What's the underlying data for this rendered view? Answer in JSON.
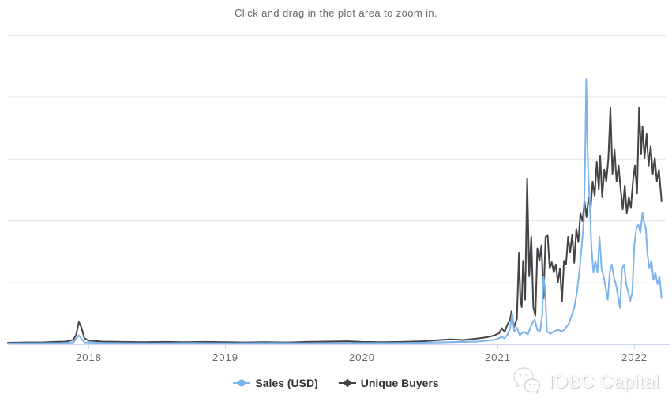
{
  "background_color": "#ffffff",
  "watermark": {
    "text": "IOBC Capital"
  },
  "chart_data": {
    "type": "line",
    "title": "Click and drag in the plot area to zoom in.",
    "xlabel": "",
    "ylabel": "",
    "legend_position": "bottom-center",
    "grid": "horizontal",
    "colors": {
      "grid": "#e6e6e6",
      "axis": "#ccd6eb",
      "tick": "#ccd6eb",
      "text": "#666666",
      "legend_text": "#333333",
      "sales": "#7cb5ec",
      "unique_buyers": "#434348"
    },
    "x_axis": {
      "ticks": [
        2018,
        2019,
        2020,
        2021,
        2022
      ],
      "range": [
        2017.41,
        2022.23
      ]
    },
    "y_axis": {
      "range": [
        0,
        100
      ],
      "unit": "relative (no y-axis labels visible in image)",
      "gridline_count": 5
    },
    "series": [
      {
        "name": "Sales (USD)",
        "color": "#7cb5ec",
        "marker": "circle",
        "points": [
          [
            2017.41,
            0.3
          ],
          [
            2017.6,
            0.3
          ],
          [
            2017.8,
            0.4
          ],
          [
            2017.89,
            0.6
          ],
          [
            2017.93,
            2.9
          ],
          [
            2017.97,
            0.6
          ],
          [
            2018.15,
            0.4
          ],
          [
            2018.45,
            0.3
          ],
          [
            2018.75,
            0.4
          ],
          [
            2019.05,
            0.3
          ],
          [
            2019.35,
            0.4
          ],
          [
            2019.65,
            0.3
          ],
          [
            2019.95,
            0.4
          ],
          [
            2020.2,
            0.4
          ],
          [
            2020.45,
            0.5
          ],
          [
            2020.65,
            0.7
          ],
          [
            2020.85,
            0.9
          ],
          [
            2020.97,
            1.4
          ],
          [
            2021.0,
            1.8
          ],
          [
            2021.03,
            2.4
          ],
          [
            2021.05,
            1.9
          ],
          [
            2021.07,
            3.1
          ],
          [
            2021.09,
            5.1
          ],
          [
            2021.105,
            10.0
          ],
          [
            2021.12,
            4.1
          ],
          [
            2021.14,
            5.4
          ],
          [
            2021.16,
            2.9
          ],
          [
            2021.19,
            4.1
          ],
          [
            2021.22,
            3.2
          ],
          [
            2021.25,
            6.6
          ],
          [
            2021.27,
            8.0
          ],
          [
            2021.29,
            4.6
          ],
          [
            2021.31,
            4.3
          ],
          [
            2021.325,
            9.2
          ],
          [
            2021.335,
            21.9
          ],
          [
            2021.345,
            18.2
          ],
          [
            2021.36,
            4.1
          ],
          [
            2021.385,
            3.4
          ],
          [
            2021.41,
            4.1
          ],
          [
            2021.44,
            4.7
          ],
          [
            2021.47,
            4.1
          ],
          [
            2021.5,
            5.4
          ],
          [
            2021.52,
            6.7
          ],
          [
            2021.54,
            9.2
          ],
          [
            2021.56,
            11.8
          ],
          [
            2021.58,
            16.9
          ],
          [
            2021.6,
            24.5
          ],
          [
            2021.615,
            32.0
          ],
          [
            2021.63,
            39.8
          ],
          [
            2021.64,
            60.2
          ],
          [
            2021.648,
            85.7
          ],
          [
            2021.656,
            65.3
          ],
          [
            2021.664,
            53.0
          ],
          [
            2021.672,
            47.5
          ],
          [
            2021.685,
            32.2
          ],
          [
            2021.7,
            23.2
          ],
          [
            2021.715,
            27.0
          ],
          [
            2021.73,
            23.2
          ],
          [
            2021.745,
            34.7
          ],
          [
            2021.76,
            24.5
          ],
          [
            2021.775,
            21.9
          ],
          [
            2021.79,
            18.2
          ],
          [
            2021.805,
            14.4
          ],
          [
            2021.82,
            23.2
          ],
          [
            2021.835,
            25.8
          ],
          [
            2021.85,
            21.9
          ],
          [
            2021.865,
            19.4
          ],
          [
            2021.88,
            15.7
          ],
          [
            2021.895,
            11.8
          ],
          [
            2021.91,
            24.5
          ],
          [
            2021.925,
            25.8
          ],
          [
            2021.94,
            19.4
          ],
          [
            2021.955,
            16.9
          ],
          [
            2021.97,
            14.0
          ],
          [
            2021.985,
            16.9
          ],
          [
            2022.0,
            32.2
          ],
          [
            2022.015,
            37.3
          ],
          [
            2022.03,
            38.6
          ],
          [
            2022.045,
            36.1
          ],
          [
            2022.06,
            42.4
          ],
          [
            2022.07,
            39.8
          ],
          [
            2022.085,
            37.3
          ],
          [
            2022.095,
            29.7
          ],
          [
            2022.11,
            24.5
          ],
          [
            2022.125,
            27.0
          ],
          [
            2022.14,
            20.8
          ],
          [
            2022.155,
            23.2
          ],
          [
            2022.17,
            19.4
          ],
          [
            2022.185,
            21.9
          ],
          [
            2022.2,
            14.9
          ]
        ]
      },
      {
        "name": "Unique Buyers",
        "color": "#434348",
        "marker": "diamond",
        "points": [
          [
            2017.41,
            0.5
          ],
          [
            2017.55,
            0.6
          ],
          [
            2017.66,
            0.6
          ],
          [
            2017.75,
            0.8
          ],
          [
            2017.84,
            0.9
          ],
          [
            2017.89,
            1.5
          ],
          [
            2017.91,
            3.0
          ],
          [
            2017.93,
            7.2
          ],
          [
            2017.95,
            5.3
          ],
          [
            2017.97,
            2.0
          ],
          [
            2018.0,
            1.2
          ],
          [
            2018.1,
            0.9
          ],
          [
            2018.25,
            0.8
          ],
          [
            2018.4,
            0.7
          ],
          [
            2018.55,
            0.8
          ],
          [
            2018.7,
            0.7
          ],
          [
            2018.85,
            0.8
          ],
          [
            2019.0,
            0.7
          ],
          [
            2019.15,
            0.6
          ],
          [
            2019.3,
            0.7
          ],
          [
            2019.45,
            0.6
          ],
          [
            2019.6,
            0.8
          ],
          [
            2019.75,
            0.9
          ],
          [
            2019.9,
            1.0
          ],
          [
            2020.0,
            0.8
          ],
          [
            2020.15,
            0.7
          ],
          [
            2020.3,
            0.8
          ],
          [
            2020.45,
            1.0
          ],
          [
            2020.55,
            1.3
          ],
          [
            2020.65,
            1.6
          ],
          [
            2020.75,
            1.4
          ],
          [
            2020.85,
            1.9
          ],
          [
            2020.92,
            2.3
          ],
          [
            2020.97,
            2.8
          ],
          [
            2021.01,
            3.6
          ],
          [
            2021.03,
            5.2
          ],
          [
            2021.05,
            4.0
          ],
          [
            2021.07,
            6.3
          ],
          [
            2021.09,
            8.0
          ],
          [
            2021.1,
            10.6
          ],
          [
            2021.12,
            5.6
          ],
          [
            2021.14,
            8.2
          ],
          [
            2021.155,
            29.6
          ],
          [
            2021.165,
            15.0
          ],
          [
            2021.175,
            12.0
          ],
          [
            2021.185,
            27.0
          ],
          [
            2021.2,
            14.4
          ],
          [
            2021.215,
            53.6
          ],
          [
            2021.23,
            22.0
          ],
          [
            2021.245,
            34.7
          ],
          [
            2021.26,
            12.0
          ],
          [
            2021.275,
            9.3
          ],
          [
            2021.29,
            31.0
          ],
          [
            2021.305,
            27.0
          ],
          [
            2021.32,
            32.0
          ],
          [
            2021.335,
            14.8
          ],
          [
            2021.35,
            34.7
          ],
          [
            2021.365,
            35.3
          ],
          [
            2021.38,
            24.5
          ],
          [
            2021.395,
            26.5
          ],
          [
            2021.41,
            23.2
          ],
          [
            2021.425,
            25.8
          ],
          [
            2021.44,
            20.0
          ],
          [
            2021.455,
            24.5
          ],
          [
            2021.47,
            13.8
          ],
          [
            2021.485,
            27.0
          ],
          [
            2021.5,
            25.8
          ],
          [
            2021.515,
            34.7
          ],
          [
            2021.53,
            29.6
          ],
          [
            2021.545,
            35.5
          ],
          [
            2021.56,
            26.3
          ],
          [
            2021.575,
            37.2
          ],
          [
            2021.59,
            33.0
          ],
          [
            2021.605,
            42.3
          ],
          [
            2021.62,
            39.8
          ],
          [
            2021.635,
            46.2
          ],
          [
            2021.65,
            41.1
          ],
          [
            2021.665,
            47.5
          ],
          [
            2021.68,
            43.6
          ],
          [
            2021.695,
            52.6
          ],
          [
            2021.71,
            48.0
          ],
          [
            2021.725,
            59.0
          ],
          [
            2021.74,
            50.0
          ],
          [
            2021.75,
            61.0
          ],
          [
            2021.765,
            47.5
          ],
          [
            2021.78,
            56.4
          ],
          [
            2021.795,
            52.6
          ],
          [
            2021.81,
            60.0
          ],
          [
            2021.825,
            76.3
          ],
          [
            2021.84,
            55.1
          ],
          [
            2021.855,
            62.8
          ],
          [
            2021.87,
            52.6
          ],
          [
            2021.885,
            57.7
          ],
          [
            2021.9,
            50.0
          ],
          [
            2021.915,
            43.6
          ],
          [
            2021.93,
            51.3
          ],
          [
            2021.945,
            42.3
          ],
          [
            2021.96,
            47.5
          ],
          [
            2021.975,
            44.0
          ],
          [
            2021.99,
            52.6
          ],
          [
            2022.005,
            57.7
          ],
          [
            2022.02,
            48.7
          ],
          [
            2022.035,
            76.3
          ],
          [
            2022.05,
            61.5
          ],
          [
            2022.06,
            70.4
          ],
          [
            2022.075,
            60.2
          ],
          [
            2022.09,
            67.9
          ],
          [
            2022.105,
            57.7
          ],
          [
            2022.12,
            64.0
          ],
          [
            2022.135,
            55.1
          ],
          [
            2022.15,
            60.2
          ],
          [
            2022.165,
            52.6
          ],
          [
            2022.18,
            56.4
          ],
          [
            2022.2,
            46.2
          ]
        ]
      }
    ]
  }
}
